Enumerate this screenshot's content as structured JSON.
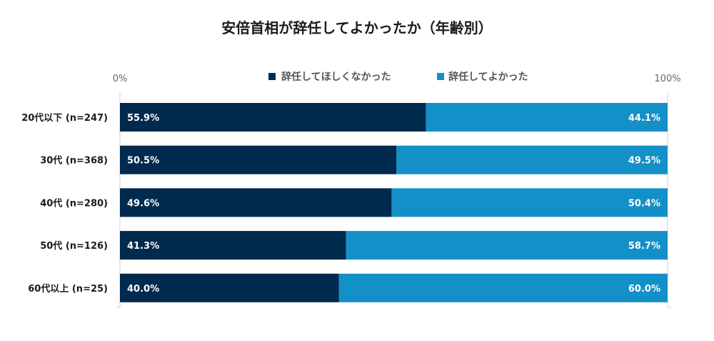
{
  "chart_data": {
    "type": "bar",
    "orientation": "horizontal",
    "stacked": true,
    "title": "安倍首相が辞任してよかったか（年齢別）",
    "categories": [
      "20代以下 (n=247)",
      "30代 (n=368)",
      "40代 (n=280)",
      "50代 (n=126)",
      "60代以上 (n=25)"
    ],
    "series": [
      {
        "name": "辞任してほしくなかった",
        "color": "#002a4e",
        "values": [
          55.9,
          50.5,
          49.6,
          41.3,
          40.0
        ]
      },
      {
        "name": "辞任してよかった",
        "color": "#1490c8",
        "values": [
          44.1,
          49.5,
          50.4,
          58.7,
          60.0
        ]
      }
    ],
    "xlim": [
      0,
      100
    ],
    "x_ticks": [
      "0%",
      "100%"
    ],
    "legend_position": "top",
    "grid": false
  }
}
